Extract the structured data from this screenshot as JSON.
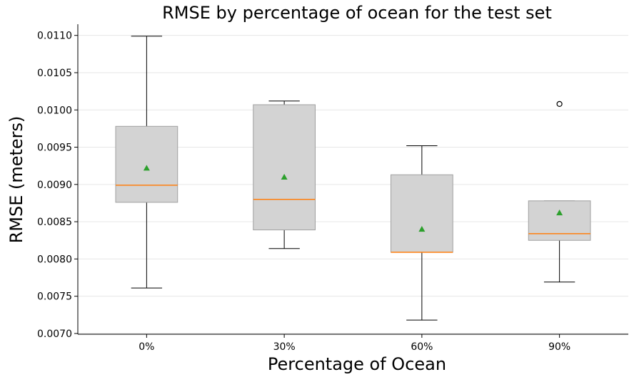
{
  "chart_data": {
    "type": "box",
    "title": "RMSE by percentage of ocean for the test set",
    "xlabel": "Percentage of Ocean",
    "ylabel": "RMSE (meters)",
    "categories": [
      "0%",
      "30%",
      "60%",
      "90%"
    ],
    "ylim": [
      0.00699,
      0.01115
    ],
    "yticks": [
      0.007,
      0.0075,
      0.008,
      0.0085,
      0.009,
      0.0095,
      0.01,
      0.0105,
      0.011
    ],
    "ytick_labels": [
      "0.0070",
      "0.0075",
      "0.0080",
      "0.0085",
      "0.0090",
      "0.0095",
      "0.0100",
      "0.0105",
      "0.0110"
    ],
    "grid": "horizontal",
    "boxes": [
      {
        "category": "0%",
        "whisker_low": 0.00761,
        "q1": 0.00876,
        "median": 0.00899,
        "q3": 0.00978,
        "whisker_high": 0.01099,
        "mean": 0.00922,
        "outliers": []
      },
      {
        "category": "30%",
        "whisker_low": 0.00814,
        "q1": 0.00839,
        "median": 0.0088,
        "q3": 0.01007,
        "whisker_high": 0.01012,
        "mean": 0.0091,
        "outliers": []
      },
      {
        "category": "60%",
        "whisker_low": 0.00718,
        "q1": 0.00809,
        "median": 0.00809,
        "q3": 0.00913,
        "whisker_high": 0.00952,
        "mean": 0.0084,
        "outliers": []
      },
      {
        "category": "90%",
        "whisker_low": 0.00769,
        "q1": 0.00825,
        "median": 0.00834,
        "q3": 0.00878,
        "whisker_high": 0.00878,
        "mean": 0.00862,
        "outliers": [
          0.01008
        ]
      }
    ],
    "colors": {
      "box_fill": "#d3d3d3",
      "box_edge": "#a0a0a0",
      "median": "#ff7f0e",
      "mean_marker": "#2ca02c",
      "whisker": "#000000",
      "grid": "#e6e6e6"
    }
  }
}
